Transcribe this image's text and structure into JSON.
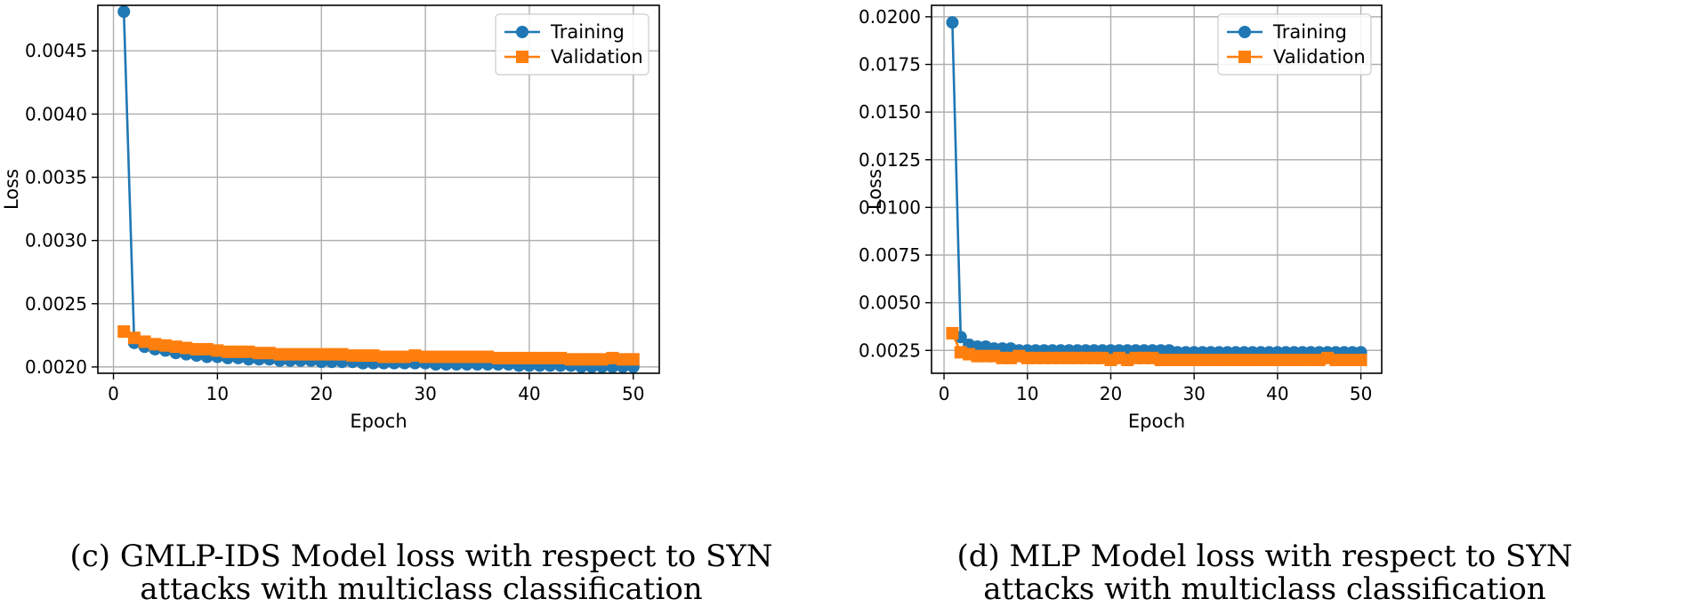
{
  "colors": {
    "training": "#1f77b4",
    "validation": "#ff7f0e",
    "grid": "#b0b0b0",
    "axes": "#000000"
  },
  "chart_data": [
    {
      "type": "line",
      "title": "",
      "xlabel": "Epoch",
      "ylabel": "Loss",
      "xlim": [
        -1.5,
        52.5
      ],
      "ylim": [
        0.00195,
        0.00486
      ],
      "xticks": [
        0,
        10,
        20,
        30,
        40,
        50
      ],
      "xtick_labels": [
        "0",
        "10",
        "20",
        "30",
        "40",
        "50"
      ],
      "yticks": [
        0.002,
        0.0025,
        0.003,
        0.0035,
        0.004,
        0.0045
      ],
      "ytick_labels": [
        "0.0020",
        "0.0025",
        "0.0030",
        "0.0035",
        "0.0040",
        "0.0045"
      ],
      "grid": true,
      "legend_position": "upper right",
      "x": [
        1,
        2,
        3,
        4,
        5,
        6,
        7,
        8,
        9,
        10,
        11,
        12,
        13,
        14,
        15,
        16,
        17,
        18,
        19,
        20,
        21,
        22,
        23,
        24,
        25,
        26,
        27,
        28,
        29,
        30,
        31,
        32,
        33,
        34,
        35,
        36,
        37,
        38,
        39,
        40,
        41,
        42,
        43,
        44,
        45,
        46,
        47,
        48,
        49,
        50
      ],
      "series": [
        {
          "name": "Training",
          "marker": "circle",
          "values": [
            0.00481,
            0.00219,
            0.00216,
            0.00214,
            0.00213,
            0.00211,
            0.0021,
            0.00209,
            0.00208,
            0.00208,
            0.00207,
            0.00207,
            0.00206,
            0.00206,
            0.00206,
            0.00205,
            0.00205,
            0.00205,
            0.00205,
            0.00204,
            0.00204,
            0.00204,
            0.00204,
            0.00203,
            0.00203,
            0.00203,
            0.00203,
            0.00203,
            0.00203,
            0.00203,
            0.00202,
            0.00202,
            0.00202,
            0.00202,
            0.00202,
            0.00202,
            0.00202,
            0.00202,
            0.00201,
            0.00201,
            0.00201,
            0.00201,
            0.00201,
            0.00201,
            0.002,
            0.002,
            0.002,
            0.002,
            0.002,
            0.002
          ]
        },
        {
          "name": "Validation",
          "marker": "square",
          "values": [
            0.00228,
            0.00223,
            0.0022,
            0.00218,
            0.00217,
            0.00216,
            0.00215,
            0.00214,
            0.00214,
            0.00213,
            0.00212,
            0.00212,
            0.00212,
            0.00211,
            0.00211,
            0.0021,
            0.0021,
            0.0021,
            0.0021,
            0.0021,
            0.0021,
            0.0021,
            0.00209,
            0.00209,
            0.00209,
            0.00208,
            0.00208,
            0.00208,
            0.00209,
            0.00208,
            0.00208,
            0.00208,
            0.00208,
            0.00208,
            0.00208,
            0.00208,
            0.00207,
            0.00207,
            0.00207,
            0.00207,
            0.00207,
            0.00207,
            0.00207,
            0.00206,
            0.00206,
            0.00206,
            0.00206,
            0.00207,
            0.00206,
            0.00206
          ]
        }
      ],
      "caption": [
        "(c) GMLP-IDS Model loss with respect to SYN",
        "attacks with multiclass classification"
      ]
    },
    {
      "type": "line",
      "title": "",
      "xlabel": "Epoch",
      "ylabel": "Loss",
      "xlim": [
        -1.5,
        52.5
      ],
      "ylim": [
        0.0013,
        0.0206
      ],
      "xticks": [
        0,
        10,
        20,
        30,
        40,
        50
      ],
      "xtick_labels": [
        "0",
        "10",
        "20",
        "30",
        "40",
        "50"
      ],
      "yticks": [
        0.0025,
        0.005,
        0.0075,
        0.01,
        0.0125,
        0.015,
        0.0175,
        0.02
      ],
      "ytick_labels": [
        "0.0025",
        "0.0050",
        "0.0075",
        "0.0100",
        "0.0125",
        "0.0150",
        "0.0175",
        "0.0200"
      ],
      "grid": true,
      "legend_position": "upper right",
      "x": [
        1,
        2,
        3,
        4,
        5,
        6,
        7,
        8,
        9,
        10,
        11,
        12,
        13,
        14,
        15,
        16,
        17,
        18,
        19,
        20,
        21,
        22,
        23,
        24,
        25,
        26,
        27,
        28,
        29,
        30,
        31,
        32,
        33,
        34,
        35,
        36,
        37,
        38,
        39,
        40,
        41,
        42,
        43,
        44,
        45,
        46,
        47,
        48,
        49,
        50
      ],
      "series": [
        {
          "name": "Training",
          "marker": "circle",
          "values": [
            0.0197,
            0.0032,
            0.0028,
            0.0027,
            0.0027,
            0.0026,
            0.0026,
            0.0026,
            0.0025,
            0.0025,
            0.0025,
            0.0025,
            0.0025,
            0.0025,
            0.0025,
            0.0025,
            0.0025,
            0.0025,
            0.0025,
            0.0025,
            0.0025,
            0.0025,
            0.0025,
            0.0025,
            0.0025,
            0.0025,
            0.0025,
            0.0024,
            0.0024,
            0.0024,
            0.0024,
            0.0024,
            0.0024,
            0.0024,
            0.0024,
            0.0024,
            0.0024,
            0.0024,
            0.0024,
            0.0024,
            0.0024,
            0.0024,
            0.0024,
            0.0024,
            0.0024,
            0.0024,
            0.0024,
            0.0024,
            0.0024,
            0.0024
          ]
        },
        {
          "name": "Validation",
          "marker": "square",
          "values": [
            0.0034,
            0.0024,
            0.0023,
            0.0022,
            0.0022,
            0.0022,
            0.0021,
            0.0021,
            0.0022,
            0.0021,
            0.0021,
            0.0021,
            0.0021,
            0.0021,
            0.0021,
            0.0021,
            0.0021,
            0.0021,
            0.0021,
            0.002,
            0.0021,
            0.002,
            0.0021,
            0.0021,
            0.0021,
            0.002,
            0.002,
            0.002,
            0.002,
            0.002,
            0.002,
            0.002,
            0.002,
            0.002,
            0.002,
            0.002,
            0.002,
            0.002,
            0.002,
            0.002,
            0.002,
            0.002,
            0.002,
            0.002,
            0.002,
            0.0021,
            0.002,
            0.002,
            0.002,
            0.002
          ]
        }
      ],
      "caption": [
        "(d) MLP Model loss with respect to SYN",
        "attacks with multiclass classification"
      ]
    }
  ]
}
